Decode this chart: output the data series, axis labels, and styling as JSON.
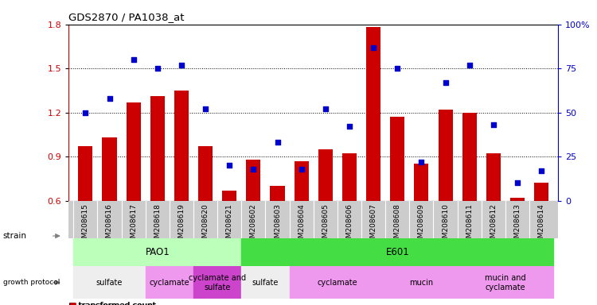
{
  "title": "GDS2870 / PA1038_at",
  "samples": [
    "GSM208615",
    "GSM208616",
    "GSM208617",
    "GSM208618",
    "GSM208619",
    "GSM208620",
    "GSM208621",
    "GSM208602",
    "GSM208603",
    "GSM208604",
    "GSM208605",
    "GSM208606",
    "GSM208607",
    "GSM208608",
    "GSM208609",
    "GSM208610",
    "GSM208611",
    "GSM208612",
    "GSM208613",
    "GSM208614"
  ],
  "transformed_count": [
    0.97,
    1.03,
    1.27,
    1.31,
    1.35,
    0.97,
    0.67,
    0.88,
    0.7,
    0.87,
    0.95,
    0.92,
    1.78,
    1.17,
    0.85,
    1.22,
    1.2,
    0.92,
    0.62,
    0.72
  ],
  "percentile_rank": [
    50,
    58,
    80,
    75,
    77,
    52,
    20,
    18,
    33,
    18,
    52,
    42,
    87,
    75,
    22,
    67,
    77,
    43,
    10,
    17
  ],
  "ylim_left": [
    0.6,
    1.8
  ],
  "ylim_right": [
    0,
    100
  ],
  "yticks_left": [
    0.6,
    0.9,
    1.2,
    1.5,
    1.8
  ],
  "yticks_right": [
    0,
    25,
    50,
    75,
    100
  ],
  "bar_color": "#cc0000",
  "dot_color": "#0000cc",
  "strain_groups": [
    {
      "label": "PAO1",
      "start": 0,
      "end": 7,
      "color": "#bbffbb"
    },
    {
      "label": "E601",
      "start": 7,
      "end": 20,
      "color": "#44dd44"
    }
  ],
  "growth_groups": [
    {
      "label": "sulfate",
      "start": 0,
      "end": 3,
      "color": "#eeeeee"
    },
    {
      "label": "cyclamate",
      "start": 3,
      "end": 5,
      "color": "#ee99ee"
    },
    {
      "label": "cyclamate and\nsulfate",
      "start": 5,
      "end": 7,
      "color": "#cc44cc"
    },
    {
      "label": "sulfate",
      "start": 7,
      "end": 9,
      "color": "#eeeeee"
    },
    {
      "label": "cyclamate",
      "start": 9,
      "end": 13,
      "color": "#ee99ee"
    },
    {
      "label": "mucin",
      "start": 13,
      "end": 16,
      "color": "#ee99ee"
    },
    {
      "label": "mucin and\ncyclamate",
      "start": 16,
      "end": 20,
      "color": "#ee99ee"
    }
  ],
  "xtick_bg": "#cccccc",
  "bg_color": "#ffffff"
}
